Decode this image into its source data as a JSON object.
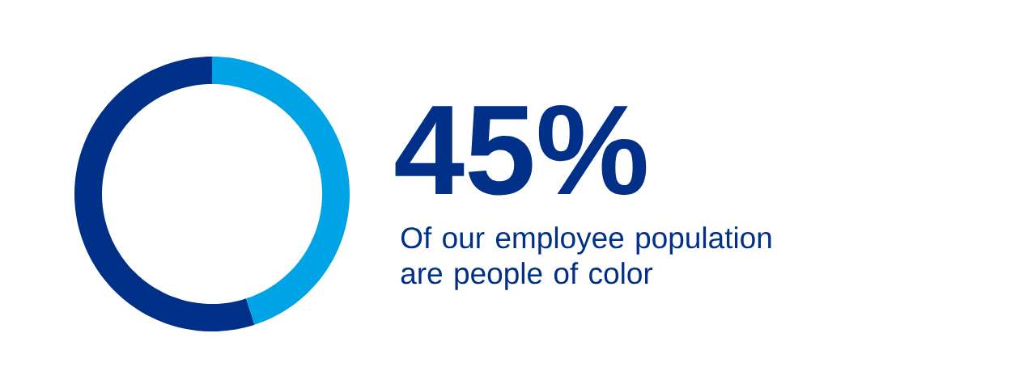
{
  "chart_data": {
    "type": "donut",
    "categories": [
      null,
      null
    ],
    "values": [
      45,
      55
    ],
    "colors": [
      "#00a3e6",
      "#003087"
    ],
    "value_labels": [
      "45%",
      null
    ],
    "annotations": [
      "Of our employee population are people of color"
    ]
  }
}
